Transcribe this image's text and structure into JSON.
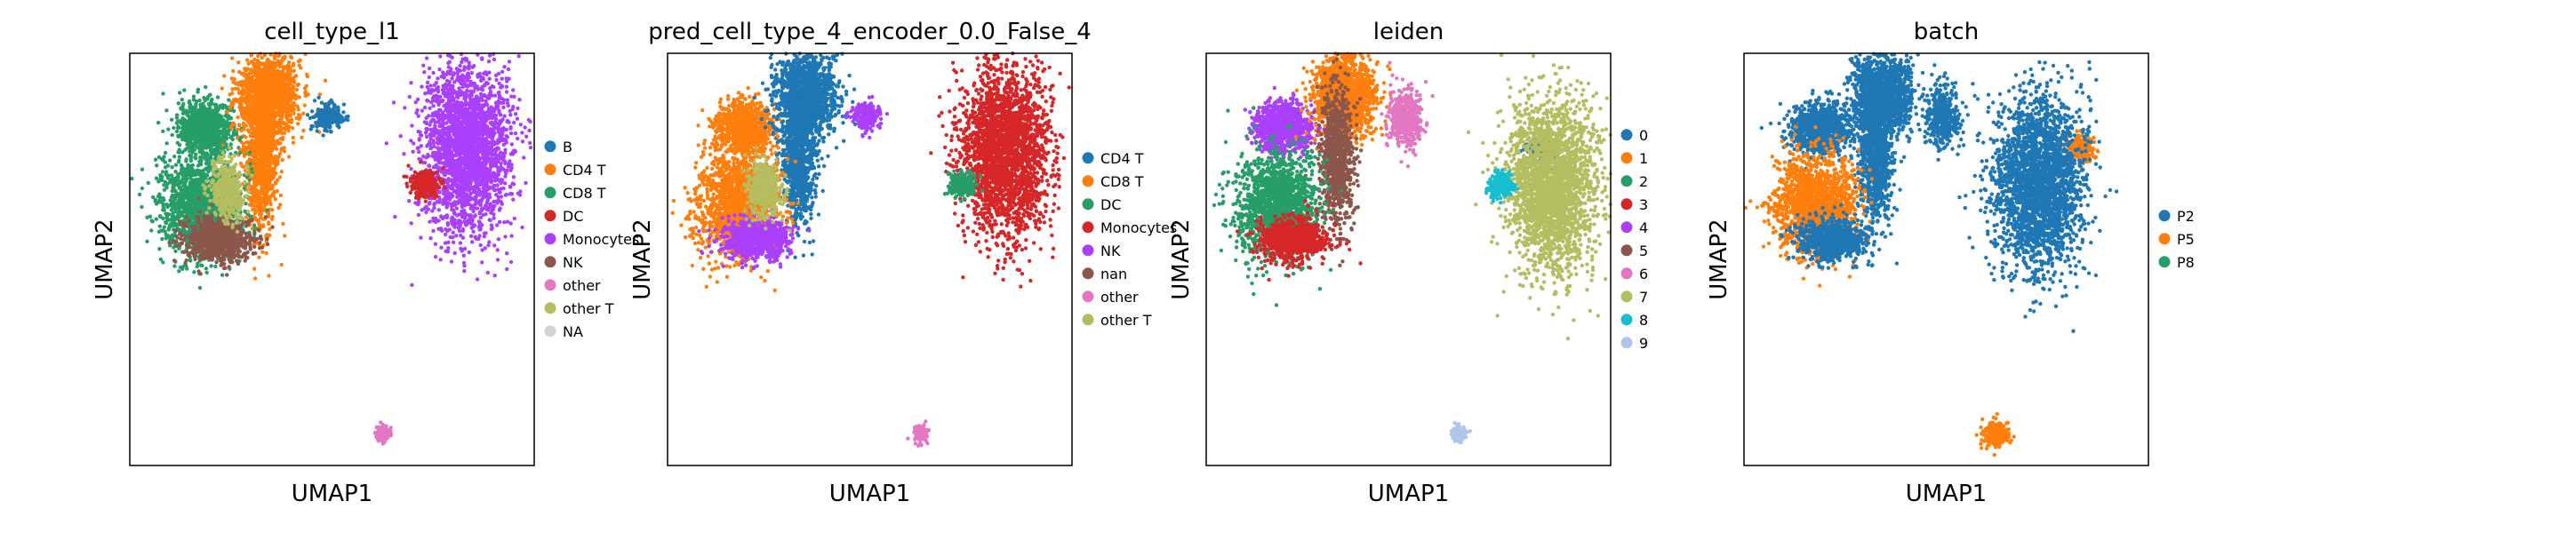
{
  "chart_data": [
    {
      "type": "scatter",
      "title": "cell_type_l1",
      "xlabel": "UMAP1",
      "ylabel": "UMAP2",
      "grid": false,
      "legend_placement": "right",
      "legend": [
        {
          "label": "B",
          "color": "#1f77b4"
        },
        {
          "label": "CD4 T",
          "color": "#ff7f0e"
        },
        {
          "label": "CD8 T",
          "color": "#279e68"
        },
        {
          "label": "DC",
          "color": "#d62728"
        },
        {
          "label": "Monocytes",
          "color": "#aa40fc"
        },
        {
          "label": "NK",
          "color": "#8c564b"
        },
        {
          "label": "other",
          "color": "#e377c2"
        },
        {
          "label": "other T",
          "color": "#b5bd61"
        },
        {
          "label": "NA",
          "color": "#d3d3d3"
        }
      ],
      "clusters": [
        {
          "series": "CD8 T",
          "x": 0.25,
          "y": 0.65,
          "label": ""
        },
        {
          "series": "CD4 T",
          "x": 0.62,
          "y": 0.8,
          "label": ""
        },
        {
          "series": "CD4 T",
          "x": 0.58,
          "y": 0.5,
          "label": ""
        },
        {
          "series": "CD8 T",
          "x": 0.22,
          "y": 0.28,
          "label": ""
        },
        {
          "series": "NK",
          "x": 0.32,
          "y": 0.12,
          "label": ""
        },
        {
          "series": "other T",
          "x": 0.38,
          "y": 0.35,
          "label": ""
        },
        {
          "series": "B",
          "x": 0.98,
          "y": 0.7,
          "label": ""
        },
        {
          "series": "Monocytes",
          "x": 1.8,
          "y": 0.55,
          "label": ""
        },
        {
          "series": "DC",
          "x": 1.55,
          "y": 0.38,
          "label": ""
        },
        {
          "series": "other",
          "x": 1.3,
          "y": -0.8,
          "label": ""
        }
      ]
    },
    {
      "type": "scatter",
      "title": "pred_cell_type_4_encoder_0.0_False_4",
      "xlabel": "UMAP1",
      "ylabel": "UMAP2",
      "grid": false,
      "legend_placement": "right",
      "legend": [
        {
          "label": "CD4 T",
          "color": "#1f77b4"
        },
        {
          "label": "CD8 T",
          "color": "#ff7f0e"
        },
        {
          "label": "DC",
          "color": "#279e68"
        },
        {
          "label": "Monocytes",
          "color": "#d62728"
        },
        {
          "label": "NK",
          "color": "#aa40fc"
        },
        {
          "label": "nan",
          "color": "#8c564b"
        },
        {
          "label": "other",
          "color": "#e377c2"
        },
        {
          "label": "other T",
          "color": "#b5bd61"
        }
      ],
      "clusters": [
        {
          "series": "CD8 T",
          "x": 0.25,
          "y": 0.65,
          "label": ""
        },
        {
          "series": "CD4 T",
          "x": 0.62,
          "y": 0.8,
          "label": ""
        },
        {
          "series": "CD4 T",
          "x": 0.58,
          "y": 0.5,
          "label": ""
        },
        {
          "series": "CD8 T",
          "x": 0.22,
          "y": 0.28,
          "label": ""
        },
        {
          "series": "NK",
          "x": 0.32,
          "y": 0.12,
          "label": ""
        },
        {
          "series": "other T",
          "x": 0.38,
          "y": 0.35,
          "label": ""
        },
        {
          "series": "NK",
          "x": 0.98,
          "y": 0.7,
          "label": ""
        },
        {
          "series": "Monocytes",
          "x": 1.8,
          "y": 0.55,
          "label": ""
        },
        {
          "series": "DC",
          "x": 1.55,
          "y": 0.38,
          "label": ""
        },
        {
          "series": "other",
          "x": 1.3,
          "y": -0.8,
          "label": ""
        }
      ]
    },
    {
      "type": "scatter",
      "title": "leiden",
      "xlabel": "UMAP1",
      "ylabel": "UMAP2",
      "grid": false,
      "legend_placement": "right",
      "legend": [
        {
          "label": "0",
          "color": "#1f77b4"
        },
        {
          "label": "1",
          "color": "#ff7f0e"
        },
        {
          "label": "2",
          "color": "#279e68"
        },
        {
          "label": "3",
          "color": "#d62728"
        },
        {
          "label": "4",
          "color": "#aa40fc"
        },
        {
          "label": "5",
          "color": "#8c564b"
        },
        {
          "label": "6",
          "color": "#e377c2"
        },
        {
          "label": "7",
          "color": "#b5bd61"
        },
        {
          "label": "8",
          "color": "#17becf"
        },
        {
          "label": "9",
          "color": "#aec7e8"
        }
      ],
      "clusters": [
        {
          "series": "4",
          "x": 0.25,
          "y": 0.65,
          "label": ""
        },
        {
          "series": "1",
          "x": 0.62,
          "y": 0.8,
          "label": ""
        },
        {
          "series": "5",
          "x": 0.58,
          "y": 0.5,
          "label": ""
        },
        {
          "series": "2",
          "x": 0.22,
          "y": 0.28,
          "label": ""
        },
        {
          "series": "3",
          "x": 0.32,
          "y": 0.12,
          "label": ""
        },
        {
          "series": "6",
          "x": 0.98,
          "y": 0.7,
          "label": ""
        },
        {
          "series": "0",
          "x": 1.8,
          "y": 0.55,
          "label": ""
        },
        {
          "series": "7",
          "x": 1.85,
          "y": 0.38,
          "label": ""
        },
        {
          "series": "8",
          "x": 1.55,
          "y": 0.38,
          "label": ""
        },
        {
          "series": "9",
          "x": 1.3,
          "y": -0.8,
          "label": ""
        }
      ]
    },
    {
      "type": "scatter",
      "title": "batch",
      "xlabel": "UMAP1",
      "ylabel": "UMAP2",
      "grid": false,
      "legend_placement": "right",
      "legend": [
        {
          "label": "P2",
          "color": "#1f77b4"
        },
        {
          "label": "P5",
          "color": "#ff7f0e"
        },
        {
          "label": "P8",
          "color": "#279e68"
        }
      ],
      "clusters": [
        {
          "series": "P2",
          "x": 0.25,
          "y": 0.65,
          "label": ""
        },
        {
          "series": "P2",
          "x": 0.62,
          "y": 0.8,
          "label": ""
        },
        {
          "series": "P2",
          "x": 0.58,
          "y": 0.5,
          "label": ""
        },
        {
          "series": "P5",
          "x": 0.22,
          "y": 0.28,
          "label": ""
        },
        {
          "series": "P2",
          "x": 0.32,
          "y": 0.12,
          "label": ""
        },
        {
          "series": "P2",
          "x": 0.98,
          "y": 0.7,
          "label": ""
        },
        {
          "series": "P5",
          "x": 1.8,
          "y": 0.55,
          "label": ""
        },
        {
          "series": "P2",
          "x": 1.55,
          "y": 0.38,
          "label": ""
        },
        {
          "series": "P5",
          "x": 1.3,
          "y": -0.8,
          "label": ""
        }
      ]
    }
  ]
}
